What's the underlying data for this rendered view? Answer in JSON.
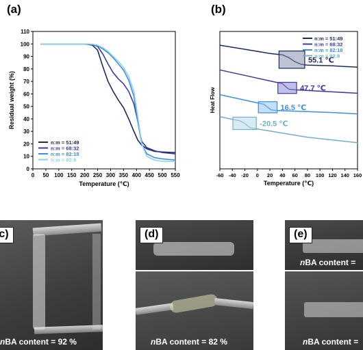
{
  "panels": {
    "a": "(a)",
    "b": "(b)",
    "c": "(c)",
    "d": "(d)",
    "e": "(e)"
  },
  "chart_data": [
    {
      "type": "line",
      "panel": "(a)",
      "xlabel": "Temperature (℃)",
      "ylabel": "Residual weight (%)",
      "xlim": [
        0,
        550
      ],
      "ylim": [
        0,
        110
      ],
      "xticks": [
        0,
        50,
        100,
        150,
        200,
        250,
        300,
        350,
        400,
        450,
        500,
        550
      ],
      "yticks": [
        0,
        10,
        20,
        30,
        40,
        50,
        60,
        70,
        80,
        90,
        100,
        110
      ],
      "legend_position": "bottom-left",
      "series": [
        {
          "name": "n:m = 51:49",
          "color": "#1b2a5e",
          "x": [
            30,
            200,
            230,
            250,
            270,
            290,
            310,
            330,
            350,
            370,
            390,
            405,
            420,
            440,
            470,
            500,
            550
          ],
          "y": [
            100,
            100,
            99,
            95,
            82,
            70,
            62,
            55,
            49,
            40,
            30,
            23,
            19,
            16,
            14,
            13.5,
            13
          ]
        },
        {
          "name": "n:m = 68:32",
          "color": "#3a38a8",
          "x": [
            30,
            200,
            230,
            250,
            270,
            290,
            310,
            330,
            350,
            370,
            390,
            405,
            420,
            440,
            470,
            500,
            550
          ],
          "y": [
            100,
            100,
            99.5,
            98,
            92,
            84,
            77,
            72,
            68,
            62,
            52,
            38,
            22,
            17,
            14.5,
            13,
            12
          ]
        },
        {
          "name": "n:m = 82:18",
          "color": "#3b8fe0",
          "x": [
            30,
            200,
            230,
            250,
            270,
            290,
            310,
            330,
            350,
            370,
            390,
            405,
            420,
            440,
            470,
            500,
            550
          ],
          "y": [
            100,
            100,
            99.5,
            98.5,
            96,
            93,
            89,
            84,
            79,
            71,
            58,
            38,
            20,
            12,
            9,
            8,
            7
          ]
        },
        {
          "name": "n:m = 92:8",
          "color": "#8fcfe6",
          "x": [
            30,
            200,
            230,
            250,
            270,
            290,
            310,
            330,
            350,
            370,
            390,
            405,
            420,
            440,
            470,
            500,
            550
          ],
          "y": [
            100,
            100,
            99.8,
            99,
            97,
            94,
            90,
            86,
            81,
            74,
            62,
            42,
            20,
            10,
            7,
            6,
            6
          ]
        }
      ]
    },
    {
      "type": "line",
      "panel": "(b)",
      "xlabel": "Temperature (℃)",
      "ylabel": "Heat Flow",
      "xlim": [
        -60,
        160
      ],
      "xticks": [
        -60,
        -40,
        -20,
        0,
        20,
        40,
        60,
        80,
        100,
        120,
        140,
        160
      ],
      "legend_position": "top-right",
      "series": [
        {
          "name": "n:m = 51:49",
          "color": "#1b2a5e",
          "x": [
            -60,
            -20,
            20,
            40,
            50,
            60,
            70,
            80,
            120,
            160
          ],
          "y": [
            0.9,
            0.87,
            0.84,
            0.83,
            0.81,
            0.78,
            0.76,
            0.755,
            0.75,
            0.74
          ]
        },
        {
          "name": "n:m = 68:32",
          "color": "#3a38a8",
          "x": [
            -60,
            -20,
            20,
            40,
            45,
            50,
            60,
            80,
            120,
            160
          ],
          "y": [
            0.72,
            0.68,
            0.64,
            0.62,
            0.6,
            0.58,
            0.575,
            0.57,
            0.56,
            0.55
          ]
        },
        {
          "name": "n:m = 82:18",
          "color": "#3b8fe0",
          "x": [
            -60,
            -30,
            0,
            10,
            16,
            22,
            30,
            60,
            120,
            160
          ],
          "y": [
            0.54,
            0.51,
            0.48,
            0.47,
            0.45,
            0.43,
            0.425,
            0.42,
            0.41,
            0.4
          ]
        },
        {
          "name": "n:m = 92:8",
          "color": "#6fb0c8",
          "x": [
            -60,
            -40,
            -28,
            -20,
            -12,
            0,
            40,
            80,
            120,
            160
          ],
          "y": [
            0.38,
            0.36,
            0.35,
            0.33,
            0.3,
            0.29,
            0.26,
            0.23,
            0.21,
            0.19
          ]
        }
      ],
      "annotations": [
        {
          "label": "55.1 ℃",
          "tg": 55.1,
          "color": "#1b2a5e"
        },
        {
          "label": "47.7 ℃",
          "tg": 47.7,
          "color": "#3a38a8"
        },
        {
          "label": "16.5 ℃",
          "tg": 16.5,
          "color": "#3b8fe0"
        },
        {
          "label": "-20.5 ℃",
          "tg": -20.5,
          "color": "#6fb0c8"
        }
      ]
    }
  ],
  "photos": {
    "c": {
      "caption_prefix": "n",
      "caption_rest": "BA content = 92 %"
    },
    "d": {
      "caption_prefix": "n",
      "caption_rest": "BA content = 82 %"
    },
    "e": {
      "caption_top_prefix": "n",
      "caption_top_rest": "BA content =",
      "caption_bottom_prefix": "n",
      "caption_bottom_rest": "BA content ="
    }
  }
}
